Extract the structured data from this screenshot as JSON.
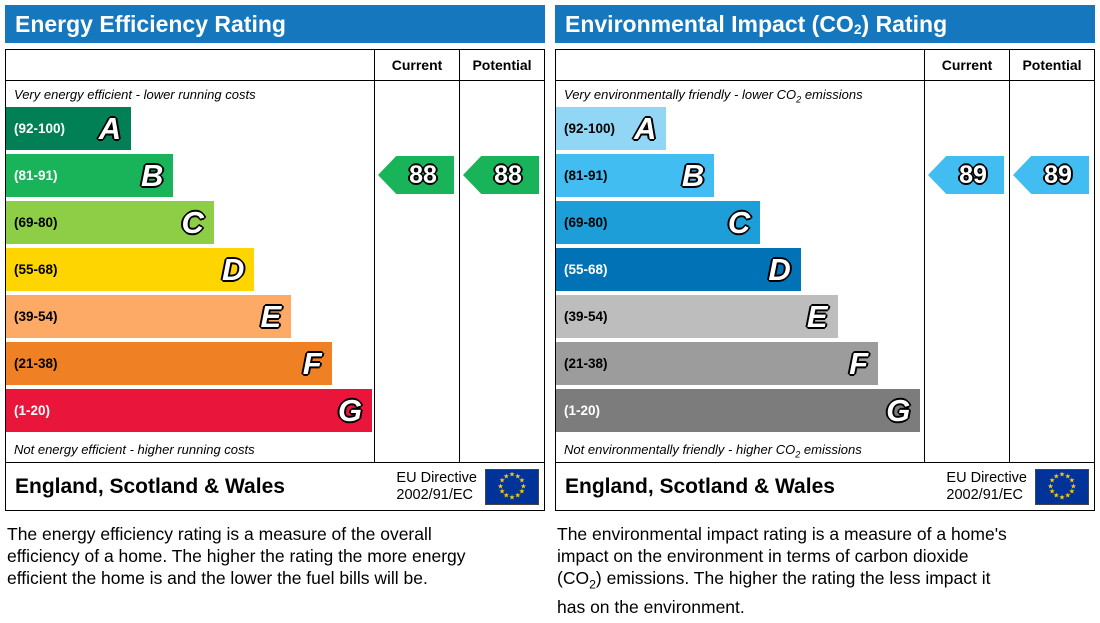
{
  "chart_data": [
    {
      "type": "bar",
      "title": "Energy Efficiency Rating",
      "categories": [
        "A (92-100)",
        "B (81-91)",
        "C (69-80)",
        "D (55-68)",
        "E (39-54)",
        "F (21-38)",
        "G (1-20)"
      ],
      "values": [
        34,
        46,
        57,
        68,
        78,
        89,
        100
      ],
      "value_note": "relative band bar lengths, percent of chart width",
      "ratings": {
        "current": 88,
        "potential": 88,
        "current_band": "B",
        "potential_band": "B"
      },
      "legend": [
        "Current",
        "Potential"
      ],
      "top_note": "Very energy efficient - lower running costs",
      "bottom_note": "Not energy efficient - higher running costs"
    },
    {
      "type": "bar",
      "title": "Environmental Impact (CO2) Rating",
      "categories": [
        "A (92-100)",
        "B (81-91)",
        "C (69-80)",
        "D (55-68)",
        "E (39-54)",
        "F (21-38)",
        "G (1-20)"
      ],
      "values": [
        30,
        43,
        56,
        67,
        77,
        88,
        99
      ],
      "value_note": "relative band bar lengths, percent of chart width",
      "ratings": {
        "current": 89,
        "potential": 89,
        "current_band": "B",
        "potential_band": "B"
      },
      "legend": [
        "Current",
        "Potential"
      ],
      "top_note": "Very environmentally friendly - lower CO2 emissions",
      "bottom_note": "Not environmentally friendly - higher CO2 emissions"
    }
  ],
  "ui_colors": {
    "header_blue": "#1577bd",
    "eu_flag_blue": "#003399",
    "eu_star_yellow": "#ffcc00",
    "energy_arrow": "#19b459",
    "impact_arrow": "#41bdf2"
  },
  "panels": [
    {
      "title_parts": {
        "pre": "Energy Efficiency Rating",
        "sub": "",
        "post": ""
      },
      "columns": {
        "current": "Current",
        "potential": "Potential"
      },
      "top_note": {
        "pre": "Very energy efficient - lower running costs",
        "sub": "",
        "post": ""
      },
      "bottom_note": {
        "pre": "Not energy efficient - higher running costs",
        "sub": "",
        "post": ""
      },
      "bands": [
        {
          "letter": "A",
          "range": "(92-100)",
          "color": "#008054",
          "text_color": "#ffffff",
          "width": 0.34
        },
        {
          "letter": "B",
          "range": "(81-91)",
          "color": "#19b459",
          "text_color": "#ffffff",
          "width": 0.455
        },
        {
          "letter": "C",
          "range": "(69-80)",
          "color": "#8dce46",
          "text_color": "#000000",
          "width": 0.565
        },
        {
          "letter": "D",
          "range": "(55-68)",
          "color": "#ffd500",
          "text_color": "#000000",
          "width": 0.675
        },
        {
          "letter": "E",
          "range": "(39-54)",
          "color": "#fcaa65",
          "text_color": "#000000",
          "width": 0.775
        },
        {
          "letter": "F",
          "range": "(21-38)",
          "color": "#ef8023",
          "text_color": "#000000",
          "width": 0.885
        },
        {
          "letter": "G",
          "range": "(1-20)",
          "color": "#e9153b",
          "text_color": "#ffffff",
          "width": 0.995
        }
      ],
      "current": {
        "value": "88",
        "letter": "B",
        "color": "#19b459"
      },
      "potential": {
        "value": "88",
        "letter": "B",
        "color": "#19b459"
      },
      "footer": {
        "region": "England, Scotland & Wales",
        "directive_line1": "EU Directive",
        "directive_line2": "2002/91/EC"
      },
      "description": {
        "pre": "The energy efficiency rating is a measure of the overall efficiency of a home. The higher the rating the more energy efficient the home is and the lower the fuel bills will be.",
        "sub": "",
        "post": ""
      }
    },
    {
      "title_parts": {
        "pre": "Environmental Impact (CO",
        "sub": "2",
        "post": ") Rating"
      },
      "columns": {
        "current": "Current",
        "potential": "Potential"
      },
      "top_note": {
        "pre": "Very environmentally friendly - lower CO",
        "sub": "2",
        "post": " emissions"
      },
      "bottom_note": {
        "pre": "Not environmentally friendly - higher CO",
        "sub": "2",
        "post": " emissions"
      },
      "bands": [
        {
          "letter": "A",
          "range": "(92-100)",
          "color": "#92d6f5",
          "text_color": "#000000",
          "width": 0.3
        },
        {
          "letter": "B",
          "range": "(81-91)",
          "color": "#41bdf2",
          "text_color": "#000000",
          "width": 0.43
        },
        {
          "letter": "C",
          "range": "(69-80)",
          "color": "#1d9ed9",
          "text_color": "#000000",
          "width": 0.555
        },
        {
          "letter": "D",
          "range": "(55-68)",
          "color": "#0072b5",
          "text_color": "#ffffff",
          "width": 0.665
        },
        {
          "letter": "E",
          "range": "(39-54)",
          "color": "#bdbdbd",
          "text_color": "#000000",
          "width": 0.765
        },
        {
          "letter": "F",
          "range": "(21-38)",
          "color": "#9c9c9c",
          "text_color": "#000000",
          "width": 0.875
        },
        {
          "letter": "G",
          "range": "(1-20)",
          "color": "#7c7c7c",
          "text_color": "#ffffff",
          "width": 0.99
        }
      ],
      "current": {
        "value": "89",
        "letter": "B",
        "color": "#41bdf2"
      },
      "potential": {
        "value": "89",
        "letter": "B",
        "color": "#41bdf2"
      },
      "footer": {
        "region": "England, Scotland & Wales",
        "directive_line1": "EU Directive",
        "directive_line2": "2002/91/EC"
      },
      "description": {
        "pre": "The environmental impact rating is a measure of a home's impact on the environment in terms of carbon dioxide (CO",
        "sub": "2",
        "post": ") emissions. The higher the rating the less impact it has on the environment."
      }
    }
  ]
}
